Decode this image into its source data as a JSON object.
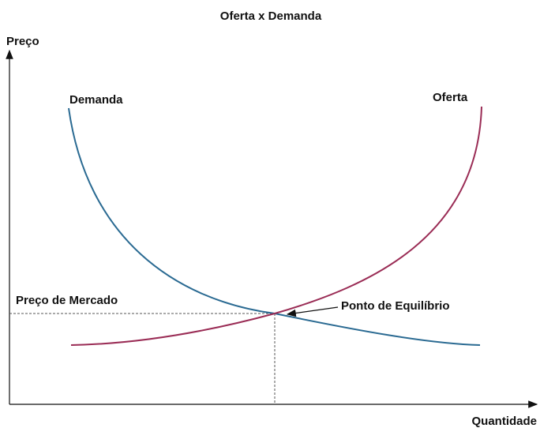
{
  "title": "Oferta x Demanda",
  "axes": {
    "y_label": "Preço",
    "x_label": "Quantidade"
  },
  "curves": {
    "demand": "Demanda",
    "supply": "Oferta"
  },
  "annotations": {
    "market_price": "Preço de Mercado",
    "equilibrium": "Ponto de Equilíbrio"
  }
}
